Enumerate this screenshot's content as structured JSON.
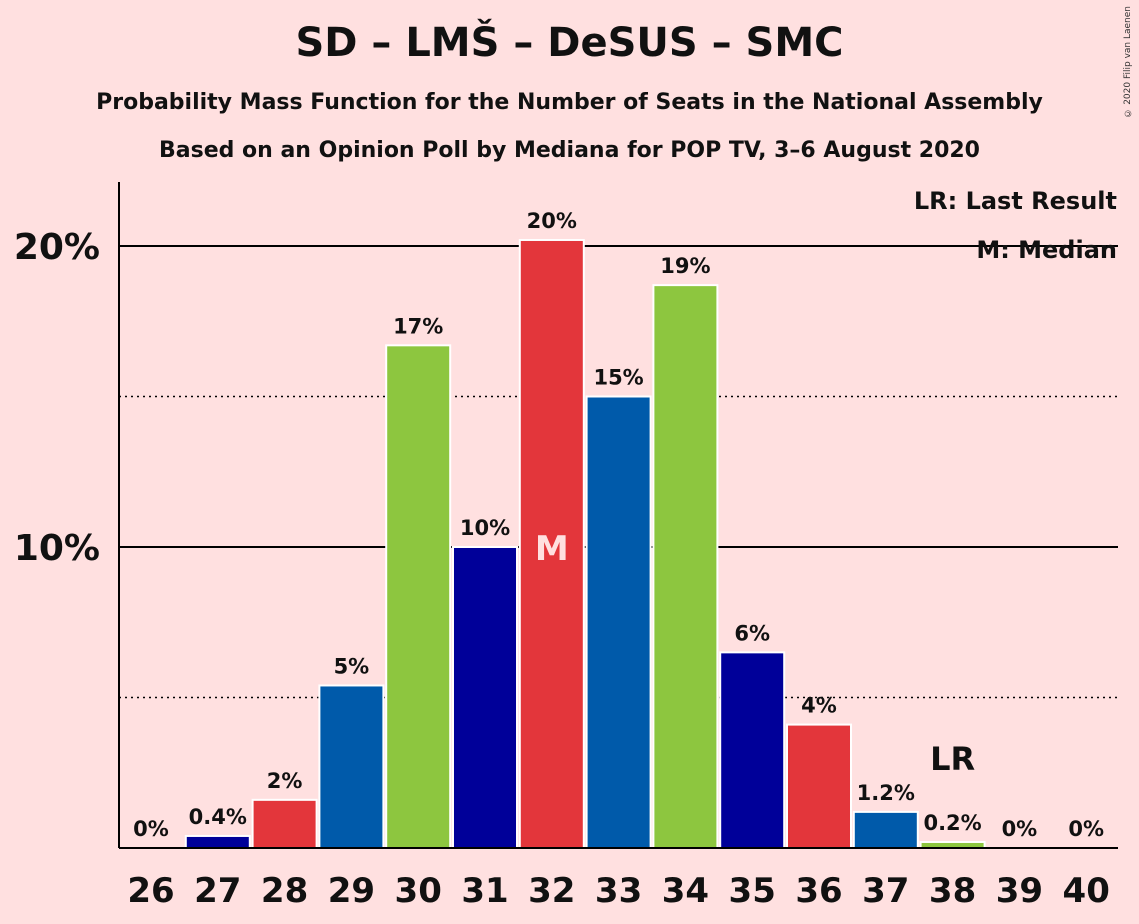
{
  "chart_data": {
    "type": "bar",
    "title": "SD – LMŠ – DeSUS – SMC",
    "subtitle": "Probability Mass Function for the Number of Seats in the National Assembly",
    "subtitle2": "Based on an Opinion Poll by Mediana for POP TV, 3–6 August 2020",
    "copyright": "© 2020 Filip van Laenen",
    "categories": [
      "26",
      "27",
      "28",
      "29",
      "30",
      "31",
      "32",
      "33",
      "34",
      "35",
      "36",
      "37",
      "38",
      "39",
      "40"
    ],
    "values": [
      0,
      0.4,
      1.6,
      5.4,
      16.7,
      10.0,
      20.2,
      15.0,
      18.7,
      6.5,
      4.1,
      1.2,
      0.2,
      0,
      0
    ],
    "labels": [
      "0%",
      "0.4%",
      "2%",
      "5%",
      "17%",
      "10%",
      "20%",
      "15%",
      "19%",
      "6%",
      "4%",
      "1.2%",
      "0.2%",
      "0%",
      "0%"
    ],
    "colors": [
      "#005aaa",
      "#000099",
      "#e3363b",
      "#005aaa",
      "#8dc63f",
      "#000099",
      "#e3363b",
      "#005aaa",
      "#8dc63f",
      "#000099",
      "#e3363b",
      "#005aaa",
      "#8dc63f",
      "#005aaa",
      "#000099"
    ],
    "yticks": [
      {
        "value": 10,
        "label": "10%"
      },
      {
        "value": 20,
        "label": "20%"
      }
    ],
    "minor_gridlines": [
      5,
      15
    ],
    "ylim": [
      0,
      22
    ],
    "median_category": "32",
    "median_marker": "M",
    "last_result_category": "38",
    "last_result_marker": "LR",
    "legend": [
      "LR: Last Result",
      "M: Median"
    ],
    "legend_position": "top-right",
    "xlabel": "",
    "ylabel": ""
  }
}
